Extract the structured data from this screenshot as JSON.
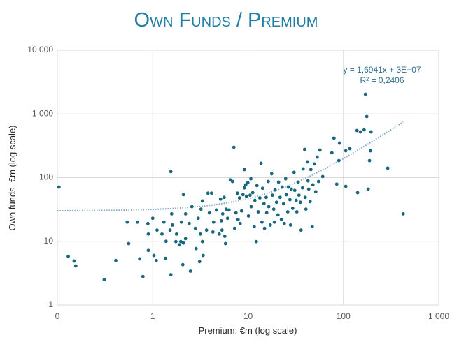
{
  "chart_data": {
    "type": "scatter",
    "title": "Own Funds / Premium",
    "x_label": "Premium, €m (log scale)",
    "y_label": "Own funds, €m (log scale)",
    "xscale": "log",
    "yscale": "log",
    "grid": true,
    "color": "#17687e",
    "xlim": [
      0.1,
      1000
    ],
    "ylim": [
      1,
      10000
    ],
    "xticks": [
      {
        "value": 0.1,
        "label": "0"
      },
      1,
      10,
      100,
      {
        "value": 1000,
        "label": "1 000"
      }
    ],
    "yticks": [
      1,
      10,
      100,
      {
        "value": 1000,
        "label": "1 000"
      },
      {
        "value": 10000,
        "label": "10 000"
      }
    ],
    "trendline": {
      "equation": "y = 1,6941x + 3E+07",
      "r_squared": "R² = 0,2406",
      "slope": 1.6941,
      "intercept": 30,
      "color": "#7fa9c9"
    },
    "x": [
      0.104,
      0.13,
      0.15,
      0.156,
      0.31,
      0.41,
      0.54,
      0.56,
      0.69,
      0.73,
      0.79,
      0.89,
      0.9,
      0.9,
      1.0,
      1.03,
      1.09,
      1.11,
      1.25,
      1.31,
      1.36,
      1.38,
      1.52,
      1.55,
      1.55,
      1.58,
      1.61,
      1.75,
      1.78,
      1.9,
      1.97,
      2.0,
      2.07,
      2.1,
      2.1,
      2.21,
      2.21,
      2.41,
      2.49,
      2.58,
      2.8,
      2.85,
      3.0,
      3.1,
      3.16,
      3.21,
      3.32,
      3.32,
      3.38,
      3.67,
      3.8,
      3.93,
      4.14,
      4.28,
      4.35,
      4.66,
      4.98,
      5.15,
      5.24,
      5.33,
      5.42,
      5.61,
      5.7,
      5.8,
      5.9,
      6.1,
      6.31,
      6.53,
      6.87,
      7.1,
      7.22,
      7.47,
      7.73,
      7.86,
      8.13,
      8.27,
      8.55,
      8.85,
      9.15,
      9.15,
      9.46,
      9.62,
      9.95,
      10.1,
      10.5,
      10.7,
      10.8,
      11.2,
      11.6,
      11.8,
      12.2,
      12.4,
      12.8,
      13.3,
      13.7,
      14.0,
      14.2,
      14.7,
      14.9,
      15.5,
      15.7,
      16.3,
      16.5,
      17.1,
      17.7,
      18.0,
      18.6,
      18.9,
      19.2,
      19.9,
      20.6,
      20.9,
      21.7,
      22.4,
      22.8,
      23.6,
      24.0,
      24.8,
      25.2,
      26.1,
      26.5,
      27.5,
      27.9,
      28.4,
      29.4,
      30.4,
      30.9,
      32.0,
      32.5,
      33.6,
      34.2,
      35.4,
      36.0,
      37.2,
      37.8,
      39.2,
      39.8,
      40.5,
      41.9,
      42.6,
      43.3,
      44.8,
      45.6,
      47.1,
      47.9,
      49.6,
      51.3,
      53.1,
      54.9,
      56.8,
      60.7,
      75.7,
      79.7,
      85.2,
      89.6,
      91.2,
      106,
      106,
      117,
      141,
      139,
      151,
      165,
      170,
      176,
      182,
      188,
      195,
      192,
      292,
      424
    ],
    "values": [
      71,
      5.8,
      4.9,
      4.1,
      2.5,
      5.0,
      20,
      9.2,
      20,
      5.3,
      2.8,
      19,
      7.2,
      13,
      23,
      6.0,
      5.0,
      15,
      13,
      20,
      5.4,
      10,
      15,
      124,
      3.0,
      27,
      18,
      9.9,
      13,
      8.8,
      9.9,
      20,
      4.3,
      54,
      9.4,
      11,
      27,
      19,
      3.4,
      35,
      16,
      7.7,
      23,
      4.8,
      13,
      32,
      43,
      9.9,
      6.0,
      15,
      57,
      28,
      57,
      14,
      20,
      31,
      13,
      46,
      21,
      15,
      27,
      49,
      12,
      9.2,
      32,
      23,
      31,
      92,
      87,
      300,
      16,
      28,
      57,
      22,
      48,
      19,
      30,
      54,
      134,
      69,
      77,
      51,
      83,
      25,
      53,
      96,
      35,
      58,
      17,
      44,
      9.9,
      75,
      29,
      48,
      168,
      20,
      68,
      39,
      16,
      49,
      28,
      87,
      35,
      18,
      115,
      53,
      32,
      20,
      64,
      41,
      26,
      85,
      49,
      22,
      71,
      39,
      19,
      96,
      54,
      29,
      71,
      45,
      18,
      66,
      33,
      121,
      63,
      44,
      29,
      85,
      53,
      41,
      15,
      69,
      137,
      278,
      49,
      32,
      177,
      89,
      66,
      42,
      134,
      17,
      77,
      164,
      60,
      210,
      87,
      271,
      104,
      245,
      416,
      79,
      185,
      348,
      73,
      264,
      285,
      58,
      549,
      522,
      563,
      2040,
      910,
      66,
      185,
      522,
      264,
      141,
      27
    ]
  }
}
